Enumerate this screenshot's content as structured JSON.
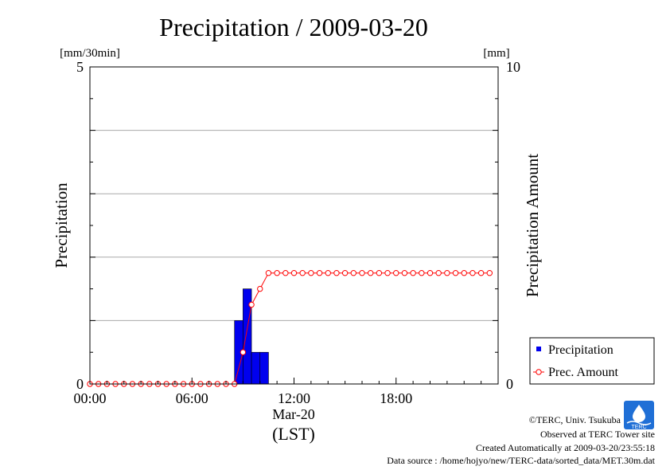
{
  "chart_data": {
    "type": "bar+line",
    "title": "Precipitation / 2009-03-20",
    "left_unit": "[mm/30min]",
    "right_unit": "[mm]",
    "ylabel": "Precipitation",
    "y2label": "Precipitation Amount",
    "ylim": [
      0,
      5
    ],
    "y2lim": [
      0,
      10
    ],
    "y_ticks": [
      "0",
      "5"
    ],
    "y2_ticks": [
      "0",
      "10"
    ],
    "xlim_hours": [
      0,
      24
    ],
    "x_tick_labels": [
      "00:00",
      "06:00",
      "12:00",
      "18:00"
    ],
    "x_date_label": "Mar-20",
    "x_timezone": "(LST)",
    "grid": true,
    "legend_position": "bottom-right",
    "series": [
      {
        "name": "Precipitation",
        "type": "bar",
        "color": "#0000ee",
        "bar_width_hours": 0.5,
        "x": [
          "08:30",
          "09:00",
          "09:30",
          "10:00"
        ],
        "values": [
          1.0,
          1.5,
          0.5,
          0.5
        ]
      },
      {
        "name": "Prec. Amount",
        "type": "line",
        "color": "#ff0000",
        "x": [
          "00:00",
          "00:30",
          "01:00",
          "01:30",
          "02:00",
          "02:30",
          "03:00",
          "03:30",
          "04:00",
          "04:30",
          "05:00",
          "05:30",
          "06:00",
          "06:30",
          "07:00",
          "07:30",
          "08:00",
          "08:30",
          "09:00",
          "09:30",
          "10:00",
          "10:30",
          "11:00",
          "11:30",
          "12:00",
          "12:30",
          "13:00",
          "13:30",
          "14:00",
          "14:30",
          "15:00",
          "15:30",
          "16:00",
          "16:30",
          "17:00",
          "17:30",
          "18:00",
          "18:30",
          "19:00",
          "19:30",
          "20:00",
          "20:30",
          "21:00",
          "21:30",
          "22:00",
          "22:30",
          "23:00",
          "23:30"
        ],
        "values": [
          0,
          0,
          0,
          0,
          0,
          0,
          0,
          0,
          0,
          0,
          0,
          0,
          0,
          0,
          0,
          0,
          0,
          0,
          1.0,
          2.5,
          3.0,
          3.5,
          3.5,
          3.5,
          3.5,
          3.5,
          3.5,
          3.5,
          3.5,
          3.5,
          3.5,
          3.5,
          3.5,
          3.5,
          3.5,
          3.5,
          3.5,
          3.5,
          3.5,
          3.5,
          3.5,
          3.5,
          3.5,
          3.5,
          3.5,
          3.5,
          3.5,
          3.5
        ]
      }
    ]
  },
  "footer": {
    "copyright": "©TERC, Univ. Tsukuba",
    "logo_text": "TERC",
    "site": "Observed at TERC Tower site",
    "created": "Created Automatically at 2009-03-20/23:55:18",
    "source": "Data source : /home/hojyo/new/TERC-data/sorted_data/MET.30m.dat"
  }
}
